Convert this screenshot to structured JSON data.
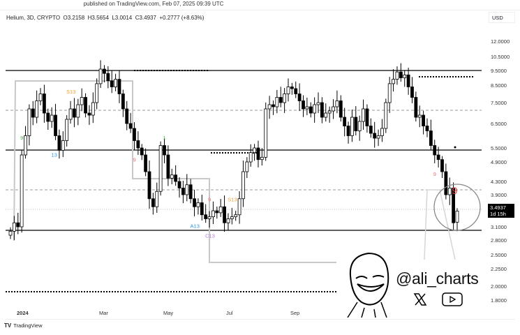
{
  "header": {
    "published": "published on TradingView.com, Feb 07, 2025 09:39 UTC",
    "symbol_info": "Helium, 3D, CRYPTO  O3.2158  H3.5654  L3.0014  C3.4937  +0.2777 (+8.63%)"
  },
  "currency": "USD",
  "price_tag": {
    "price": "3.4937",
    "countdown": "1d 15h"
  },
  "footer": {
    "brand": "TradingView"
  },
  "watermark": {
    "handle": "@ali_charts",
    "icons": [
      "x-logo-icon",
      "youtube-icon"
    ]
  },
  "chart_data": {
    "type": "candlestick",
    "title": "",
    "x_ticks": [
      "2024",
      "Mar",
      "May",
      "Jul",
      "Sep"
    ],
    "y_ticks": [
      "12.0000",
      "10.5000",
      "9.5000",
      "8.5000",
      "7.5000",
      "6.5000",
      "5.5000",
      "4.9000",
      "4.3000",
      "3.9000",
      "3.1000",
      "2.8000",
      "2.5000",
      "2.2500",
      "2.0000",
      "1.8000"
    ],
    "close": [
      3.0,
      3.2,
      3.1,
      5.2,
      6.0,
      7.2,
      6.8,
      7.6,
      8.0,
      7.0,
      6.6,
      6.9,
      6.0,
      5.4,
      5.8,
      6.7,
      7.2,
      6.8,
      7.4,
      7.8,
      7.0,
      6.9,
      7.5,
      8.6,
      9.6,
      9.3,
      8.8,
      8.4,
      8.9,
      8.0,
      7.2,
      6.5,
      6.3,
      5.8,
      5.5,
      5.2,
      4.6,
      3.8,
      3.6,
      4.0,
      5.6,
      5.2,
      4.4,
      4.5,
      4.3,
      4.1,
      3.9,
      4.2,
      3.8,
      3.6,
      3.7,
      3.4,
      3.3,
      3.35,
      3.5,
      3.45,
      3.6,
      3.2,
      3.3,
      3.35,
      3.4,
      3.8,
      4.6,
      4.9,
      5.3,
      5.5,
      5.0,
      5.1,
      7.2,
      7.4,
      7.3,
      7.8,
      7.5,
      8.0,
      8.4,
      8.3,
      8.0,
      7.6,
      7.2,
      7.3,
      7.0,
      7.4,
      7.5,
      6.8,
      7.0,
      7.1,
      7.3,
      7.6,
      6.8,
      6.4,
      6.0,
      6.8,
      6.2,
      6.6,
      7.2,
      6.4,
      6.1,
      5.9,
      6.0,
      6.3,
      7.5,
      8.6,
      8.9,
      9.4,
      9.0,
      9.2,
      8.4,
      7.8,
      6.8,
      6.9,
      6.4,
      6.2,
      5.6,
      5.2,
      5.0,
      4.6,
      3.9,
      4.1,
      3.2,
      3.4937
    ],
    "last_bar": {
      "open": 3.2158,
      "high": 3.5654,
      "low": 3.0014,
      "close": 3.4937
    },
    "horizontal_levels": [
      {
        "price": 9.5,
        "style": "solid"
      },
      {
        "price": 7.5,
        "style": "dashed"
      },
      {
        "price": 5.5,
        "style": "solid"
      },
      {
        "price": 3.9,
        "style": "dashed"
      },
      {
        "price": 3.4937,
        "style": "dotted"
      },
      {
        "price": 3.0,
        "style": "solid"
      }
    ],
    "td_labels": [
      {
        "bar": 3,
        "text": "9",
        "color": "#4caf50"
      },
      {
        "bar": 12,
        "text": "13",
        "color": "#2196f3"
      },
      {
        "bar": 16,
        "text": "S13",
        "color": "#f0a030"
      },
      {
        "bar": 33,
        "text": "9",
        "color": "#e57373"
      },
      {
        "bar": 41,
        "text": "1",
        "color": "#4caf50"
      },
      {
        "bar": 49,
        "text": "A13",
        "color": "#2196f3"
      },
      {
        "bar": 53,
        "text": "9",
        "color": "#e57373"
      },
      {
        "bar": 53,
        "text": "C13",
        "color": "#b07cd8"
      },
      {
        "bar": 59,
        "text": "S13",
        "color": "#f0a030"
      },
      {
        "bar": 113,
        "text": "9",
        "color": "#e57373"
      },
      {
        "bar": 118,
        "text": "9",
        "color": "#e57373"
      }
    ],
    "colors": {
      "up": "#ffffff",
      "down": "#000000",
      "step_line": "#c8c8c8",
      "td_big": "#e53935"
    }
  }
}
